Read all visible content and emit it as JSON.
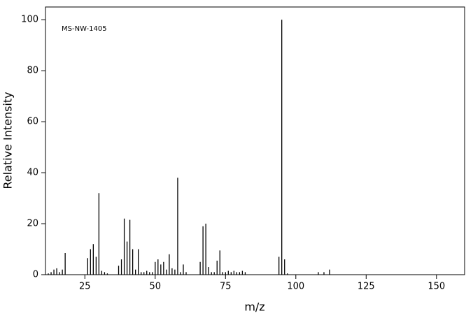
{
  "chart_data": {
    "type": "stick",
    "title": "MS-NW-1405",
    "x_label": "m/z",
    "y_label": "Relative Intensity",
    "x": [
      12,
      13,
      14,
      15,
      16,
      17,
      18,
      26,
      27,
      28,
      29,
      30,
      31,
      32,
      33,
      37,
      38,
      39,
      40,
      41,
      42,
      43,
      44,
      45,
      46,
      47,
      48,
      49,
      50,
      51,
      52,
      53,
      54,
      55,
      56,
      57,
      58,
      59,
      60,
      61,
      66,
      67,
      68,
      69,
      70,
      71,
      72,
      73,
      74,
      75,
      76,
      77,
      78,
      79,
      80,
      81,
      82,
      94,
      95,
      96,
      97,
      108,
      110,
      112
    ],
    "values": [
      0.5,
      1,
      2,
      2.5,
      1,
      2,
      8.5,
      6.5,
      10,
      12,
      7,
      32,
      1.5,
      1,
      0.5,
      3.5,
      6,
      22,
      13,
      21.5,
      10,
      2,
      10,
      1,
      1,
      1.5,
      1,
      1,
      5,
      6,
      4,
      5,
      2,
      8,
      2.5,
      2,
      38,
      1,
      4,
      1,
      5,
      19,
      20,
      3,
      1,
      1,
      5.5,
      9.5,
      1,
      1,
      1.5,
      1,
      1.5,
      1,
      1,
      1.5,
      1,
      7,
      100,
      6,
      0.5,
      1,
      1,
      2
    ],
    "color": "#000000",
    "xlim": [
      11,
      160
    ],
    "ylim": [
      0,
      105
    ],
    "xticks": [
      25,
      50,
      75,
      100,
      125,
      150
    ],
    "yticks": [
      0,
      20,
      40,
      60,
      80,
      100
    ]
  }
}
